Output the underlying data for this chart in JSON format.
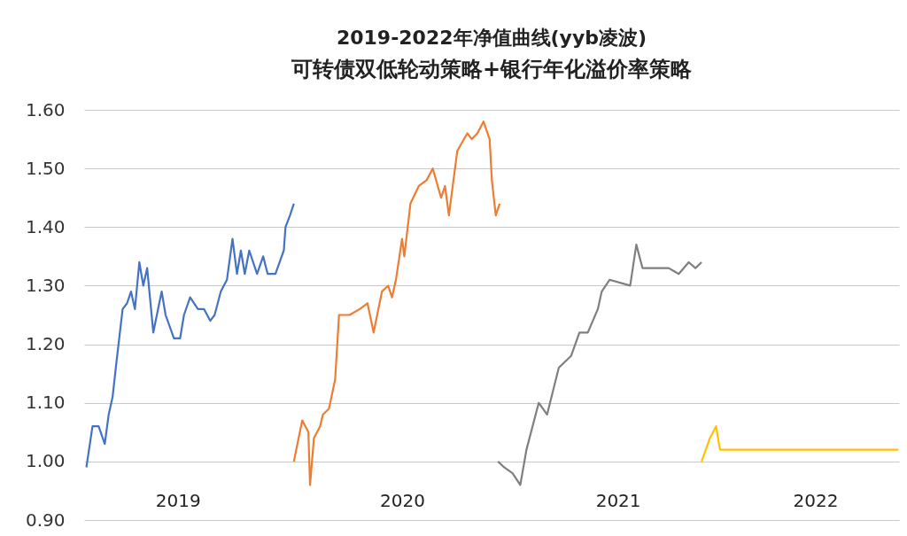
{
  "chart_data": {
    "type": "line",
    "title": "2019-2022年净值曲线(yyb凌波)",
    "subtitle": "可转债双低轮动策略+银行年化溢价率策略",
    "xlim": [
      "2019-01-01",
      "2023-01-01"
    ],
    "xticks": [
      {
        "value": "2019-06-18",
        "label": "2019"
      },
      {
        "value": "2020-07-24",
        "label": "2020"
      },
      {
        "value": "2021-08-15",
        "label": "2021"
      },
      {
        "value": "2022-08-04",
        "label": "2022"
      }
    ],
    "ylim": [
      0.9,
      1.6
    ],
    "yticks": [
      {
        "value": 0.9,
        "label": "0.90"
      },
      {
        "value": 1.0,
        "label": "1.00"
      },
      {
        "value": 1.1,
        "label": "1.10"
      },
      {
        "value": 1.2,
        "label": "1.20"
      },
      {
        "value": 1.3,
        "label": "1.30"
      },
      {
        "value": 1.4,
        "label": "1.40"
      },
      {
        "value": 1.5,
        "label": "1.50"
      },
      {
        "value": 1.6,
        "label": "1.60"
      }
    ],
    "grid": "y",
    "legend": false,
    "marker": "none",
    "line_style": "solid",
    "series": [
      {
        "color": "#4472c4",
        "x": [
          "2019-01-05",
          "2019-01-16",
          "2019-01-27",
          "2019-02-07",
          "2019-02-14",
          "2019-02-21",
          "2019-02-28",
          "2019-03-11",
          "2019-03-19",
          "2019-03-26",
          "2019-04-02",
          "2019-04-10",
          "2019-04-17",
          "2019-04-24",
          "2019-05-05",
          "2019-05-20",
          "2019-05-27",
          "2019-06-11",
          "2019-06-22",
          "2019-06-29",
          "2019-07-10",
          "2019-07-24",
          "2019-08-04",
          "2019-08-15",
          "2019-08-23",
          "2019-09-03",
          "2019-09-14",
          "2019-09-24",
          "2019-10-02",
          "2019-10-09",
          "2019-10-16",
          "2019-10-24",
          "2019-11-07",
          "2019-11-18",
          "2019-11-26",
          "2019-12-10",
          "2019-12-25",
          "2019-12-28",
          "2020-01-05",
          "2020-01-12"
        ],
        "values": [
          0.99,
          1.06,
          1.06,
          1.03,
          1.08,
          1.11,
          1.17,
          1.26,
          1.27,
          1.29,
          1.26,
          1.34,
          1.3,
          1.33,
          1.22,
          1.29,
          1.25,
          1.21,
          1.21,
          1.25,
          1.28,
          1.26,
          1.26,
          1.24,
          1.25,
          1.29,
          1.31,
          1.38,
          1.32,
          1.36,
          1.32,
          1.36,
          1.32,
          1.35,
          1.32,
          1.32,
          1.36,
          1.4,
          1.42,
          1.44
        ]
      },
      {
        "color": "#ed7d31",
        "x": [
          "2020-01-12",
          "2020-01-27",
          "2020-02-07",
          "2020-02-10",
          "2020-02-17",
          "2020-02-28",
          "2020-03-04",
          "2020-03-15",
          "2020-03-26",
          "2020-04-02",
          "2020-04-21",
          "2020-05-09",
          "2020-05-23",
          "2020-06-03",
          "2020-06-18",
          "2020-06-29",
          "2020-07-06",
          "2020-07-13",
          "2020-07-24",
          "2020-07-28",
          "2020-08-08",
          "2020-08-23",
          "2020-09-06",
          "2020-09-17",
          "2020-10-02",
          "2020-10-09",
          "2020-10-16",
          "2020-10-31",
          "2020-11-18",
          "2020-11-26",
          "2020-12-06",
          "2020-12-17",
          "2020-12-28",
          "2021-01-01",
          "2021-01-08",
          "2021-01-15"
        ],
        "values": [
          1.0,
          1.07,
          1.05,
          0.96,
          1.04,
          1.06,
          1.08,
          1.09,
          1.14,
          1.25,
          1.25,
          1.26,
          1.27,
          1.22,
          1.29,
          1.3,
          1.28,
          1.31,
          1.38,
          1.35,
          1.44,
          1.47,
          1.48,
          1.5,
          1.45,
          1.47,
          1.42,
          1.53,
          1.56,
          1.55,
          1.56,
          1.58,
          1.55,
          1.48,
          1.42,
          1.44
        ]
      },
      {
        "color": "#7f7f7f",
        "x": [
          "2021-01-12",
          "2021-01-23",
          "2021-02-07",
          "2021-02-21",
          "2021-03-04",
          "2021-03-26",
          "2021-04-10",
          "2021-05-01",
          "2021-05-23",
          "2021-06-07",
          "2021-06-22",
          "2021-07-10",
          "2021-07-17",
          "2021-07-31",
          "2021-09-06",
          "2021-09-17",
          "2021-09-28",
          "2021-10-24",
          "2021-11-14",
          "2021-12-02",
          "2021-12-20",
          "2022-01-01",
          "2022-01-12"
        ],
        "values": [
          1.0,
          0.99,
          0.98,
          0.96,
          1.02,
          1.1,
          1.08,
          1.16,
          1.18,
          1.22,
          1.22,
          1.26,
          1.29,
          1.31,
          1.3,
          1.37,
          1.33,
          1.33,
          1.33,
          1.32,
          1.34,
          1.33,
          1.34
        ]
      },
      {
        "color": "#ffc000",
        "x": [
          "2022-01-12",
          "2022-01-27",
          "2022-02-07",
          "2022-02-14",
          "2022-12-31"
        ],
        "values": [
          1.0,
          1.04,
          1.06,
          1.02,
          1.02
        ]
      }
    ]
  }
}
